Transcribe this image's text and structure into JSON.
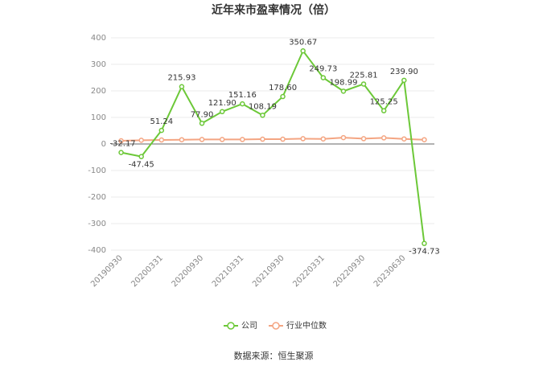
{
  "chart_data": {
    "type": "line",
    "title": "近年来市盈率情况（倍）",
    "source": "数据来源：恒生聚源",
    "categories": [
      "20190930",
      null,
      "20200331",
      null,
      "20200930",
      null,
      "20210331",
      null,
      "20210930",
      null,
      "20220331",
      null,
      "20220930",
      null,
      "20230630",
      null
    ],
    "series": [
      {
        "name": "公司",
        "color": "#6cc838",
        "values": [
          -32.17,
          -47.45,
          51.24,
          215.93,
          77.9,
          121.9,
          151.16,
          108.19,
          178.6,
          350.67,
          249.73,
          198.99,
          225.81,
          125.25,
          239.9,
          -374.73
        ],
        "value_labels": [
          "-32.17",
          "-47.45",
          "51.24",
          "215.93",
          "77.90",
          "121.90",
          "151.16",
          "108.19",
          "178.60",
          "350.67",
          "249.73",
          "198.99",
          "225.81",
          "125.25",
          "239.90",
          "-374.73"
        ]
      },
      {
        "name": "行业中位数",
        "color": "#f4a582",
        "values": [
          12,
          14,
          15,
          16,
          17,
          17,
          17,
          18,
          18,
          20,
          19,
          24,
          20,
          23,
          19,
          16
        ]
      }
    ],
    "ylim": [
      -400,
      400
    ],
    "yticks": [
      -400,
      -300,
      -200,
      -100,
      0,
      100,
      200,
      300,
      400
    ],
    "grid": true
  }
}
